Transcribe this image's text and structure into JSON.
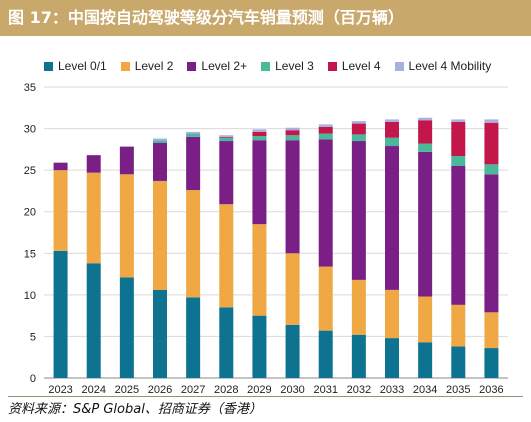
{
  "title": "图 17：中国按自动驾驶等级分汽车销量预测（百万辆）",
  "source": "资料来源：S&P Global、招商证券（香港）",
  "chart_data": {
    "type": "bar",
    "stacked": true,
    "categories": [
      "2023",
      "2024",
      "2025",
      "2026",
      "2027",
      "2028",
      "2029",
      "2030",
      "2031",
      "2032",
      "2033",
      "2034",
      "2035",
      "2036"
    ],
    "ylim": [
      0,
      35
    ],
    "yticks": [
      0,
      5,
      10,
      15,
      20,
      25,
      30,
      35
    ],
    "grid": true,
    "legend_position": "top",
    "series": [
      {
        "name": "Level 0/1",
        "color": "#0e7390",
        "values": [
          15.3,
          13.8,
          12.1,
          10.6,
          9.7,
          8.5,
          7.5,
          6.4,
          5.7,
          5.2,
          4.8,
          4.3,
          3.8,
          3.6
        ]
      },
      {
        "name": "Level 2",
        "color": "#f0a845",
        "values": [
          9.7,
          10.9,
          12.4,
          13.1,
          12.9,
          12.4,
          11.0,
          8.6,
          7.7,
          6.6,
          5.8,
          5.5,
          5.0,
          4.3
        ]
      },
      {
        "name": "Level 2+",
        "color": "#7a1f86",
        "values": [
          0.9,
          2.1,
          3.3,
          4.6,
          6.4,
          7.6,
          10.1,
          13.6,
          15.3,
          16.7,
          17.3,
          17.4,
          16.7,
          16.6
        ]
      },
      {
        "name": "Level 3",
        "color": "#4cb89a",
        "values": [
          0,
          0,
          0,
          0.3,
          0.4,
          0.4,
          0.5,
          0.6,
          0.7,
          0.8,
          1.0,
          1.0,
          1.2,
          1.2
        ]
      },
      {
        "name": "Level 4",
        "color": "#c3164b",
        "values": [
          0,
          0,
          0,
          0,
          0,
          0.1,
          0.5,
          0.6,
          0.8,
          1.3,
          1.9,
          2.8,
          4.1,
          5.0
        ]
      },
      {
        "name": "Level 4 Mobility",
        "color": "#a9aee0",
        "values": [
          0,
          0,
          0.1,
          0.2,
          0.2,
          0.2,
          0.3,
          0.3,
          0.3,
          0.3,
          0.3,
          0.3,
          0.3,
          0.4
        ]
      }
    ]
  }
}
